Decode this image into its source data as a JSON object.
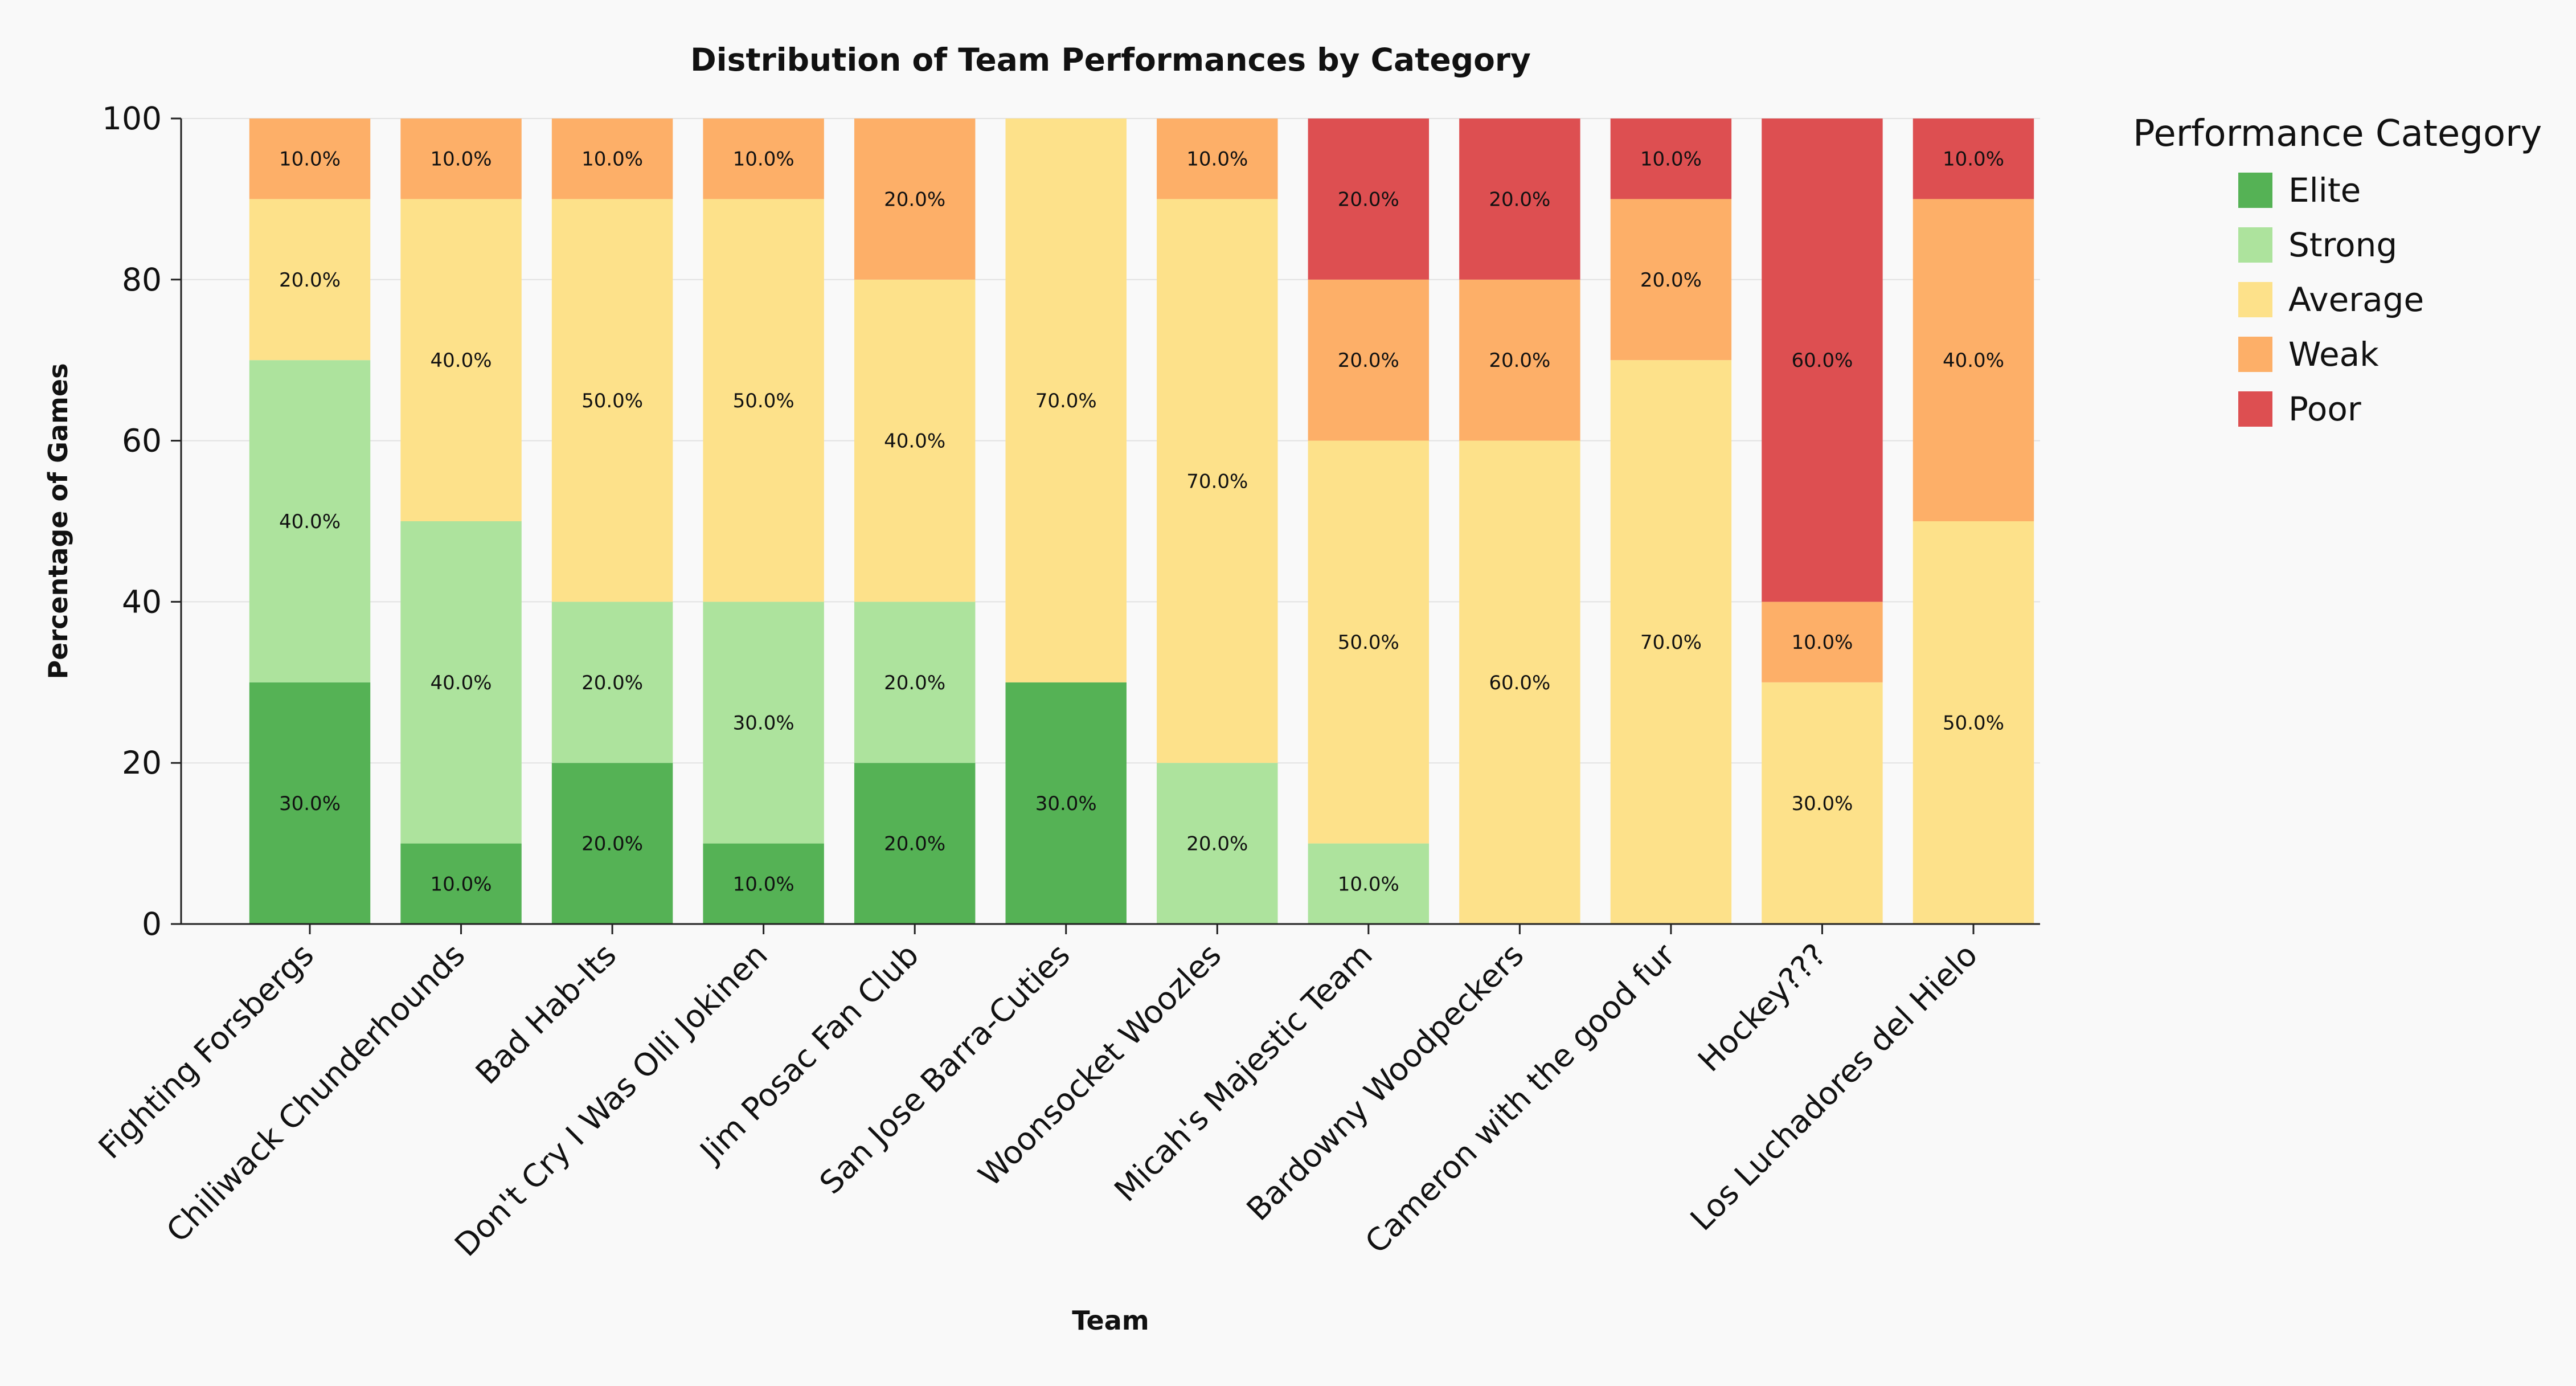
{
  "chart_data": {
    "type": "bar",
    "stacked": true,
    "title": "Distribution of Team Performances by Category",
    "xlabel": "Team",
    "ylabel": "Percentage of Games",
    "ylim": [
      0,
      100
    ],
    "yticks": [
      0,
      20,
      40,
      60,
      80,
      100
    ],
    "grid": true,
    "legend_title": "Performance Category",
    "legend_position": "top-right outside",
    "categories": [
      "Fighting Forsbergs",
      "Chiliwack Chunderhounds",
      "Bad Hab-Its",
      "Don't Cry I Was Olli Jokinen",
      "Jim Posac Fan Club",
      "San Jose Barra-Cuties",
      "Woonsocket Woozles",
      "Micah's Majestic Team",
      "Bardowny Woodpeckers",
      "Cameron with the good fur",
      "Hockey???",
      "Los Luchadores del Hielo"
    ],
    "series": [
      {
        "name": "Elite",
        "color": "#55b255",
        "values": [
          30,
          10,
          20,
          10,
          20,
          30,
          0,
          0,
          0,
          0,
          0,
          0
        ]
      },
      {
        "name": "Strong",
        "color": "#ade39d",
        "values": [
          40,
          40,
          20,
          30,
          20,
          0,
          20,
          10,
          0,
          0,
          0,
          0
        ]
      },
      {
        "name": "Average",
        "color": "#fde18a",
        "values": [
          20,
          40,
          50,
          50,
          40,
          70,
          70,
          50,
          60,
          70,
          30,
          50
        ]
      },
      {
        "name": "Weak",
        "color": "#fdaf68",
        "values": [
          10,
          10,
          10,
          10,
          20,
          0,
          10,
          20,
          20,
          20,
          10,
          40
        ]
      },
      {
        "name": "Poor",
        "color": "#dd4f51",
        "values": [
          0,
          0,
          0,
          0,
          0,
          0,
          0,
          20,
          20,
          10,
          60,
          10
        ]
      }
    ],
    "value_label_suffix": "%"
  }
}
